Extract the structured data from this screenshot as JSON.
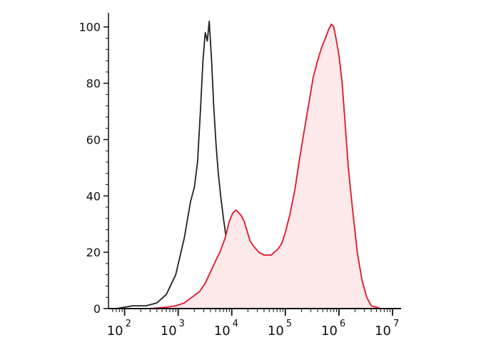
{
  "chart_data": {
    "type": "area",
    "xscale": "log",
    "xlim": [
      50,
      10000000
    ],
    "ylim": [
      0,
      105
    ],
    "grid": false,
    "legend": "none",
    "x_ticks": [
      {
        "value": 100,
        "base": "10",
        "exp": "2"
      },
      {
        "value": 1000,
        "base": "10",
        "exp": "3"
      },
      {
        "value": 10000,
        "base": "10",
        "exp": "4"
      },
      {
        "value": 100000,
        "base": "10",
        "exp": "5"
      },
      {
        "value": 1000000,
        "base": "10",
        "exp": "6"
      },
      {
        "value": 10000000,
        "base": "10",
        "exp": "7"
      }
    ],
    "y_ticks": [
      {
        "value": 0,
        "label": "0"
      },
      {
        "value": 20,
        "label": "20"
      },
      {
        "value": 40,
        "label": "40"
      },
      {
        "value": 60,
        "label": "60"
      },
      {
        "value": 80,
        "label": "80"
      },
      {
        "value": 100,
        "label": "100"
      }
    ],
    "series": [
      {
        "color": "#222222",
        "fill": "none",
        "x": [
          70,
          140,
          250,
          400,
          600,
          900,
          1300,
          1700,
          2000,
          2300,
          2600,
          2900,
          3200,
          3500,
          3800,
          4200,
          4600,
          5100,
          5600,
          6200,
          7000,
          8000,
          9500,
          11000,
          13000,
          15000,
          17000,
          19000,
          21000,
          23000,
          30000,
          50000
        ],
        "y": [
          0,
          1,
          1,
          2,
          5,
          12,
          25,
          38,
          43,
          52,
          70,
          88,
          98,
          95,
          102,
          88,
          72,
          58,
          48,
          40,
          32,
          24,
          18,
          13,
          9,
          5,
          3,
          1,
          0.5,
          0,
          0,
          0
        ]
      },
      {
        "color": "#e0142a",
        "fill": "#fde8ea",
        "x": [
          300,
          600,
          900,
          1300,
          1800,
          2500,
          3200,
          4000,
          5000,
          6000,
          7500,
          9000,
          10500,
          12000,
          13500,
          15000,
          17000,
          19000,
          22000,
          26000,
          32000,
          40000,
          48000,
          55000,
          62000,
          72000,
          85000,
          100000,
          120000,
          150000,
          180000,
          220000,
          270000,
          330000,
          400000,
          480000,
          560000,
          640000,
          720000,
          800000,
          880000,
          1000000,
          1150000,
          1300000,
          1500000,
          1800000,
          2200000,
          2700000,
          3300000,
          4000000,
          5000000,
          6000000
        ],
        "y": [
          0,
          0.5,
          1,
          2,
          4,
          6,
          9,
          13,
          17,
          20,
          25,
          31,
          34,
          35,
          34,
          33,
          31,
          28,
          24,
          22,
          20,
          19,
          19,
          19,
          20,
          21,
          23,
          27,
          33,
          42,
          52,
          62,
          72,
          82,
          88,
          93,
          96,
          99,
          101,
          100,
          96,
          90,
          80,
          66,
          50,
          35,
          20,
          10,
          4,
          1,
          0.5,
          0
        ]
      }
    ]
  }
}
